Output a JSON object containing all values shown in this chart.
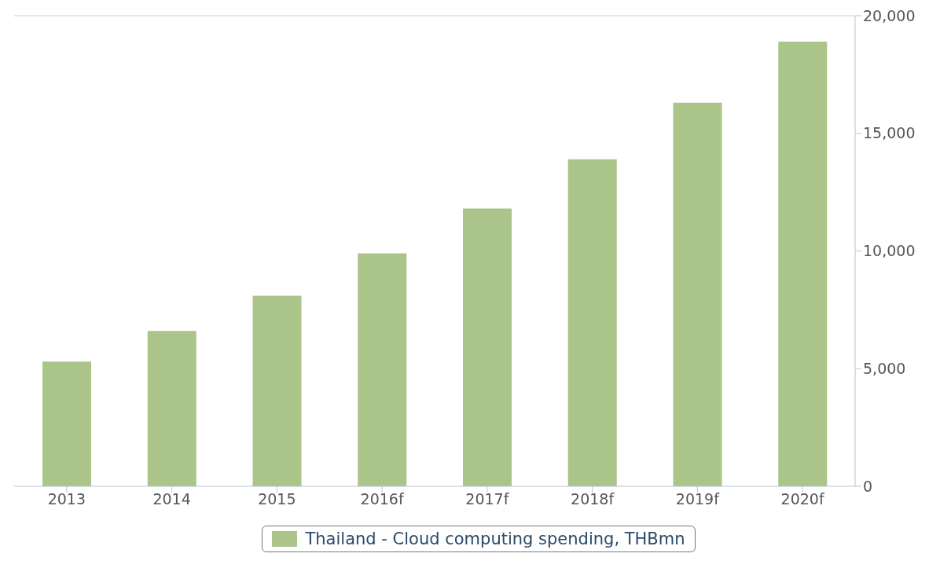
{
  "chart_data": {
    "type": "bar",
    "categories": [
      "2013",
      "2014",
      "2015",
      "2016f",
      "2017f",
      "2018f",
      "2019f",
      "2020f"
    ],
    "series": [
      {
        "name": "Thailand - Cloud computing spending, THBmn",
        "color": "#aac48a",
        "values": [
          5300,
          6600,
          8100,
          9900,
          11800,
          13900,
          16300,
          18900
        ]
      }
    ],
    "ylim": [
      0,
      20000
    ],
    "yticks": [
      {
        "value": 0,
        "label": "0"
      },
      {
        "value": 5000,
        "label": "5,000"
      },
      {
        "value": 10000,
        "label": "10,000"
      },
      {
        "value": 15000,
        "label": "15,000"
      },
      {
        "value": 20000,
        "label": "20,000"
      }
    ],
    "grid": false,
    "legend": "bottom"
  }
}
